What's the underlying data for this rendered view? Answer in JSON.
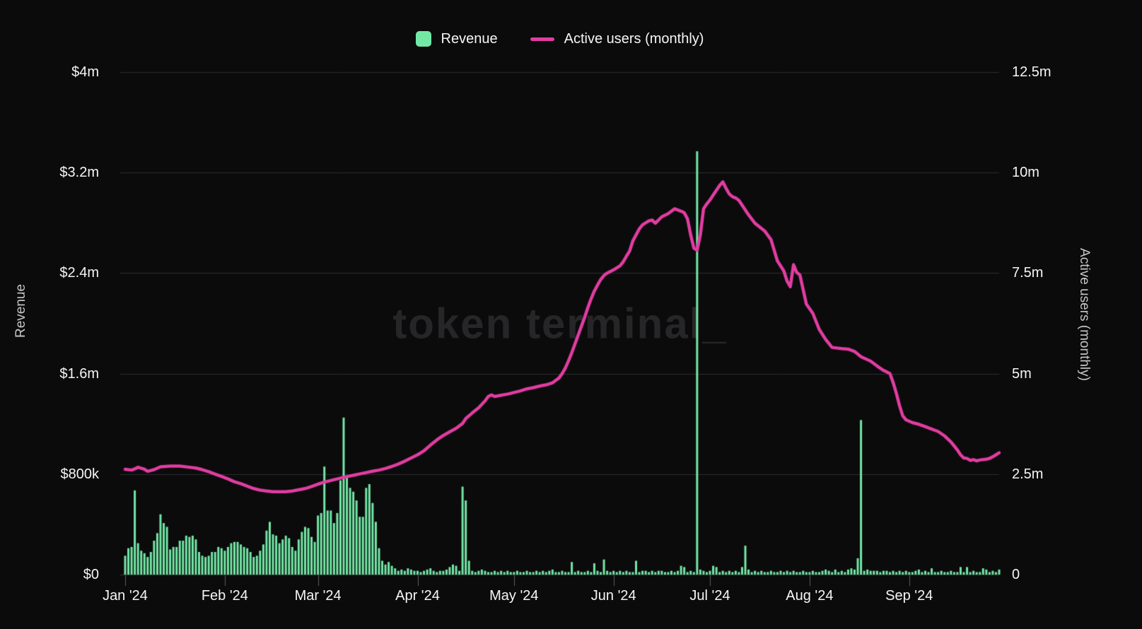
{
  "watermark": "token terminal_",
  "legend": {
    "revenue_label": "Revenue",
    "users_label": "Active users (monthly)"
  },
  "colors": {
    "background": "#0b0b0c",
    "bar": "#73e8a6",
    "line": "#e23da1",
    "grid": "#2e2e30",
    "axis_line": "#3a3a3c",
    "tick_mark": "#5f5f63",
    "tick_label": "#f5f5f5",
    "axis_title": "#c6c6c8",
    "watermark_color": "#262628"
  },
  "chart_data": {
    "type": "bar+line",
    "title": "",
    "legend_position": "top",
    "grid": "horizontal",
    "x_axis": {
      "start": "Jan 2024",
      "end": "Sep 2024",
      "tick_labels": [
        "Jan '24",
        "Feb '24",
        "Mar '24",
        "Apr '24",
        "May '24",
        "Jun '24",
        "Jul '24",
        "Aug '24",
        "Sep '24"
      ],
      "days_per_month": [
        31,
        29,
        31,
        30,
        31,
        30,
        31,
        31,
        29
      ]
    },
    "left_axis": {
      "title": "Revenue",
      "tick_labels": [
        "$0",
        "$800k",
        "$1.6m",
        "$2.4m",
        "$3.2m",
        "$4m"
      ],
      "range_million_usd": [
        0,
        4
      ]
    },
    "right_axis": {
      "title": "Active users (monthly)",
      "tick_labels": [
        "0",
        "2.5m",
        "5m",
        "7.5m",
        "10m",
        "12.5m"
      ],
      "range_million_users": [
        0,
        12.5
      ]
    },
    "series": [
      {
        "name": "Revenue",
        "type": "bar",
        "axis": "left",
        "unit": "million USD per day",
        "daily_values": [
          0.15,
          0.21,
          0.22,
          0.67,
          0.25,
          0.19,
          0.17,
          0.14,
          0.18,
          0.27,
          0.33,
          0.48,
          0.41,
          0.38,
          0.2,
          0.22,
          0.22,
          0.27,
          0.27,
          0.31,
          0.3,
          0.31,
          0.28,
          0.18,
          0.15,
          0.14,
          0.15,
          0.18,
          0.18,
          0.22,
          0.21,
          0.19,
          0.22,
          0.25,
          0.26,
          0.26,
          0.24,
          0.22,
          0.21,
          0.18,
          0.14,
          0.15,
          0.19,
          0.24,
          0.35,
          0.42,
          0.32,
          0.31,
          0.25,
          0.28,
          0.31,
          0.29,
          0.22,
          0.19,
          0.28,
          0.34,
          0.38,
          0.37,
          0.3,
          0.26,
          0.47,
          0.49,
          0.86,
          0.51,
          0.51,
          0.41,
          0.49,
          0.75,
          1.25,
          0.77,
          0.69,
          0.66,
          0.59,
          0.46,
          0.46,
          0.69,
          0.72,
          0.57,
          0.42,
          0.21,
          0.11,
          0.08,
          0.1,
          0.07,
          0.05,
          0.03,
          0.04,
          0.03,
          0.05,
          0.04,
          0.03,
          0.03,
          0.02,
          0.03,
          0.04,
          0.05,
          0.03,
          0.02,
          0.03,
          0.03,
          0.04,
          0.06,
          0.08,
          0.07,
          0.03,
          0.7,
          0.59,
          0.11,
          0.03,
          0.02,
          0.03,
          0.04,
          0.03,
          0.02,
          0.02,
          0.03,
          0.02,
          0.03,
          0.02,
          0.03,
          0.02,
          0.02,
          0.03,
          0.02,
          0.02,
          0.03,
          0.02,
          0.02,
          0.03,
          0.02,
          0.03,
          0.02,
          0.03,
          0.04,
          0.02,
          0.02,
          0.03,
          0.02,
          0.02,
          0.1,
          0.02,
          0.03,
          0.02,
          0.02,
          0.03,
          0.02,
          0.09,
          0.03,
          0.02,
          0.12,
          0.03,
          0.02,
          0.03,
          0.02,
          0.03,
          0.02,
          0.03,
          0.02,
          0.02,
          0.11,
          0.02,
          0.03,
          0.03,
          0.02,
          0.03,
          0.02,
          0.03,
          0.03,
          0.02,
          0.02,
          0.03,
          0.02,
          0.03,
          0.07,
          0.06,
          0.02,
          0.03,
          0.02,
          3.37,
          0.04,
          0.03,
          0.02,
          0.03,
          0.07,
          0.06,
          0.02,
          0.03,
          0.02,
          0.03,
          0.02,
          0.03,
          0.02,
          0.06,
          0.23,
          0.04,
          0.02,
          0.03,
          0.02,
          0.03,
          0.02,
          0.02,
          0.03,
          0.02,
          0.02,
          0.03,
          0.02,
          0.03,
          0.02,
          0.03,
          0.02,
          0.02,
          0.03,
          0.02,
          0.02,
          0.03,
          0.02,
          0.02,
          0.03,
          0.04,
          0.03,
          0.02,
          0.04,
          0.02,
          0.03,
          0.02,
          0.04,
          0.05,
          0.04,
          0.13,
          1.23,
          0.03,
          0.04,
          0.03,
          0.03,
          0.03,
          0.02,
          0.03,
          0.03,
          0.02,
          0.03,
          0.02,
          0.03,
          0.02,
          0.03,
          0.02,
          0.02,
          0.03,
          0.04,
          0.02,
          0.03,
          0.02,
          0.05,
          0.02,
          0.02,
          0.03,
          0.02,
          0.02,
          0.03,
          0.02,
          0.02,
          0.06,
          0.02,
          0.06,
          0.02,
          0.03,
          0.02,
          0.02,
          0.05,
          0.04,
          0.02,
          0.03,
          0.02,
          0.04
        ]
      },
      {
        "name": "Active users (monthly)",
        "type": "line",
        "axis": "right",
        "unit": "million users",
        "points": [
          [
            0,
            2.62
          ],
          [
            2,
            2.6
          ],
          [
            3,
            2.63
          ],
          [
            4,
            2.67
          ],
          [
            6,
            2.62
          ],
          [
            7,
            2.57
          ],
          [
            9,
            2.61
          ],
          [
            11,
            2.68
          ],
          [
            14,
            2.7
          ],
          [
            17,
            2.7
          ],
          [
            20,
            2.67
          ],
          [
            22,
            2.65
          ],
          [
            24,
            2.61
          ],
          [
            26,
            2.56
          ],
          [
            28,
            2.5
          ],
          [
            30,
            2.44
          ],
          [
            32,
            2.38
          ],
          [
            34,
            2.31
          ],
          [
            36,
            2.26
          ],
          [
            38,
            2.2
          ],
          [
            40,
            2.14
          ],
          [
            42,
            2.1
          ],
          [
            44,
            2.08
          ],
          [
            46,
            2.06
          ],
          [
            50,
            2.06
          ],
          [
            52,
            2.08
          ],
          [
            54,
            2.11
          ],
          [
            56,
            2.14
          ],
          [
            58,
            2.19
          ],
          [
            60,
            2.25
          ],
          [
            62,
            2.3
          ],
          [
            64,
            2.34
          ],
          [
            66,
            2.38
          ],
          [
            68,
            2.42
          ],
          [
            71,
            2.47
          ],
          [
            74,
            2.52
          ],
          [
            77,
            2.57
          ],
          [
            79,
            2.6
          ],
          [
            81,
            2.64
          ],
          [
            83,
            2.69
          ],
          [
            85,
            2.75
          ],
          [
            87,
            2.82
          ],
          [
            89,
            2.9
          ],
          [
            91,
            2.98
          ],
          [
            93,
            3.08
          ],
          [
            95,
            3.22
          ],
          [
            97,
            3.35
          ],
          [
            99,
            3.46
          ],
          [
            101,
            3.55
          ],
          [
            103,
            3.64
          ],
          [
            105,
            3.76
          ],
          [
            106,
            3.88
          ],
          [
            108,
            4.02
          ],
          [
            110,
            4.15
          ],
          [
            112,
            4.32
          ],
          [
            113,
            4.43
          ],
          [
            114,
            4.47
          ],
          [
            115,
            4.43
          ],
          [
            117,
            4.46
          ],
          [
            119,
            4.49
          ],
          [
            121,
            4.53
          ],
          [
            123,
            4.57
          ],
          [
            125,
            4.62
          ],
          [
            127,
            4.65
          ],
          [
            129,
            4.69
          ],
          [
            131,
            4.72
          ],
          [
            133,
            4.77
          ],
          [
            134,
            4.83
          ],
          [
            135,
            4.89
          ],
          [
            136,
            5.0
          ],
          [
            137,
            5.14
          ],
          [
            138,
            5.32
          ],
          [
            139,
            5.52
          ],
          [
            140,
            5.74
          ],
          [
            141,
            5.96
          ],
          [
            142,
            6.18
          ],
          [
            143,
            6.4
          ],
          [
            144,
            6.64
          ],
          [
            145,
            6.86
          ],
          [
            146,
            7.05
          ],
          [
            147,
            7.2
          ],
          [
            148,
            7.34
          ],
          [
            149,
            7.44
          ],
          [
            150,
            7.5
          ],
          [
            152,
            7.58
          ],
          [
            154,
            7.68
          ],
          [
            155,
            7.78
          ],
          [
            156,
            7.92
          ],
          [
            157,
            8.05
          ],
          [
            158,
            8.3
          ],
          [
            159,
            8.45
          ],
          [
            160,
            8.6
          ],
          [
            161,
            8.7
          ],
          [
            163,
            8.8
          ],
          [
            164,
            8.82
          ],
          [
            165,
            8.74
          ],
          [
            167,
            8.9
          ],
          [
            169,
            8.98
          ],
          [
            171,
            9.1
          ],
          [
            172,
            9.07
          ],
          [
            173,
            9.04
          ],
          [
            174,
            9.0
          ],
          [
            175,
            8.85
          ],
          [
            176,
            8.45
          ],
          [
            177,
            8.12
          ],
          [
            178,
            8.07
          ],
          [
            179,
            8.45
          ],
          [
            180,
            9.1
          ],
          [
            181,
            9.22
          ],
          [
            182,
            9.32
          ],
          [
            183,
            9.44
          ],
          [
            184,
            9.56
          ],
          [
            185,
            9.68
          ],
          [
            186,
            9.77
          ],
          [
            187,
            9.61
          ],
          [
            188,
            9.47
          ],
          [
            189,
            9.4
          ],
          [
            190,
            9.37
          ],
          [
            191,
            9.31
          ],
          [
            192,
            9.19
          ],
          [
            194,
            8.95
          ],
          [
            196,
            8.74
          ],
          [
            199,
            8.55
          ],
          [
            201,
            8.33
          ],
          [
            203,
            7.8
          ],
          [
            205,
            7.55
          ],
          [
            206,
            7.3
          ],
          [
            207,
            7.16
          ],
          [
            208,
            7.71
          ],
          [
            209,
            7.52
          ],
          [
            210,
            7.45
          ],
          [
            212,
            6.73
          ],
          [
            214,
            6.5
          ],
          [
            216,
            6.1
          ],
          [
            218,
            5.85
          ],
          [
            220,
            5.65
          ],
          [
            223,
            5.62
          ],
          [
            225,
            5.61
          ],
          [
            227,
            5.55
          ],
          [
            229,
            5.42
          ],
          [
            232,
            5.31
          ],
          [
            234,
            5.19
          ],
          [
            236,
            5.08
          ],
          [
            238,
            5.0
          ],
          [
            239,
            4.78
          ],
          [
            240,
            4.51
          ],
          [
            241,
            4.2
          ],
          [
            242,
            3.95
          ],
          [
            243,
            3.85
          ],
          [
            245,
            3.78
          ],
          [
            247,
            3.74
          ],
          [
            249,
            3.68
          ],
          [
            251,
            3.62
          ],
          [
            253,
            3.56
          ],
          [
            255,
            3.45
          ],
          [
            257,
            3.3
          ],
          [
            258,
            3.2
          ],
          [
            259,
            3.1
          ],
          [
            260,
            2.98
          ],
          [
            261,
            2.9
          ],
          [
            262,
            2.89
          ],
          [
            263,
            2.84
          ],
          [
            264,
            2.86
          ],
          [
            265,
            2.83
          ],
          [
            266,
            2.85
          ],
          [
            267,
            2.86
          ],
          [
            268,
            2.87
          ],
          [
            269,
            2.89
          ],
          [
            270,
            2.93
          ],
          [
            271,
            2.98
          ],
          [
            272,
            3.03
          ]
        ]
      }
    ]
  }
}
